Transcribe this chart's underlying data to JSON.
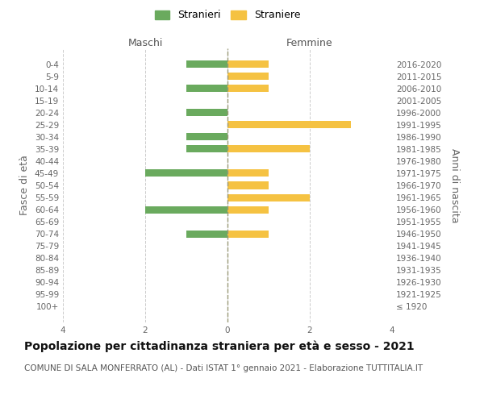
{
  "age_groups": [
    "100+",
    "95-99",
    "90-94",
    "85-89",
    "80-84",
    "75-79",
    "70-74",
    "65-69",
    "60-64",
    "55-59",
    "50-54",
    "45-49",
    "40-44",
    "35-39",
    "30-34",
    "25-29",
    "20-24",
    "15-19",
    "10-14",
    "5-9",
    "0-4"
  ],
  "birth_years": [
    "≤ 1920",
    "1921-1925",
    "1926-1930",
    "1931-1935",
    "1936-1940",
    "1941-1945",
    "1946-1950",
    "1951-1955",
    "1956-1960",
    "1961-1965",
    "1966-1970",
    "1971-1975",
    "1976-1980",
    "1981-1985",
    "1986-1990",
    "1991-1995",
    "1996-2000",
    "2001-2005",
    "2006-2010",
    "2011-2015",
    "2016-2020"
  ],
  "maschi": [
    0,
    0,
    0,
    0,
    0,
    0,
    1,
    0,
    2,
    0,
    0,
    2,
    0,
    1,
    1,
    0,
    1,
    0,
    1,
    0,
    1
  ],
  "femmine": [
    0,
    0,
    0,
    0,
    0,
    0,
    1,
    0,
    1,
    2,
    1,
    1,
    0,
    2,
    0,
    3,
    0,
    0,
    1,
    1,
    1
  ],
  "color_maschi": "#6aaa5e",
  "color_femmine": "#f5c242",
  "title": "Popolazione per cittadinanza straniera per età e sesso - 2021",
  "subtitle": "COMUNE DI SALA MONFERRATO (AL) - Dati ISTAT 1° gennaio 2021 - Elaborazione TUTTITALIA.IT",
  "xlabel_left": "Maschi",
  "xlabel_right": "Femmine",
  "ylabel_left": "Fasce di età",
  "ylabel_right": "Anni di nascita",
  "legend_maschi": "Stranieri",
  "legend_femmine": "Straniere",
  "xlim": 4,
  "bg_color": "#ffffff",
  "grid_color": "#cccccc",
  "bar_height": 0.6,
  "title_fontsize": 10,
  "subtitle_fontsize": 7.5,
  "label_fontsize": 9,
  "tick_fontsize": 7.5
}
